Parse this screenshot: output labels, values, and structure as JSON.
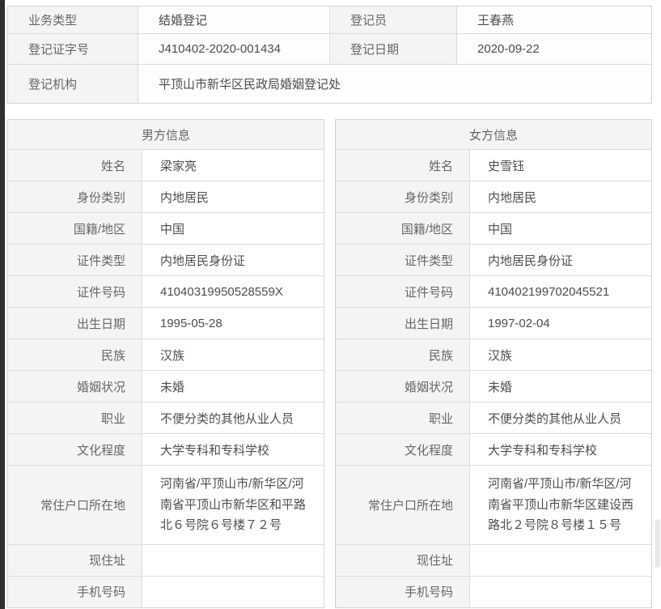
{
  "colors": {
    "label_cell_bg": "#f4f4f4",
    "value_cell_bg": "#ffffff",
    "border": "#d4d4d4",
    "label_text": "#666666",
    "value_text": "#4d4d4d",
    "window_edge": "#2f2f2f"
  },
  "registration": {
    "business_type_label": "业务类型",
    "business_type_value": "结婚登记",
    "registrar_label": "登记员",
    "registrar_value": "王春燕",
    "cert_no_label": "登记证字号",
    "cert_no_value": "J410402-2020-001434",
    "date_label": "登记日期",
    "date_value": "2020-09-22",
    "agency_label": "登记机构",
    "agency_value": "平顶山市新华区民政局婚姻登记处"
  },
  "male": {
    "title": "男方信息",
    "fields": {
      "name": {
        "label": "姓名",
        "value": "梁家亮"
      },
      "identity": {
        "label": "身份类别",
        "value": "内地居民"
      },
      "nationality": {
        "label": "国籍/地区",
        "value": "中国"
      },
      "certType": {
        "label": "证件类型",
        "value": "内地居民身份证"
      },
      "certNo": {
        "label": "证件号码",
        "value": "41040319950528559X"
      },
      "birthDate": {
        "label": "出生日期",
        "value": "1995-05-28"
      },
      "ethnicity": {
        "label": "民族",
        "value": "汉族"
      },
      "marital": {
        "label": "婚姻状况",
        "value": "未婚"
      },
      "occupation": {
        "label": "职业",
        "value": "不便分类的其他从业人员"
      },
      "education": {
        "label": "文化程度",
        "value": "大学专科和专科学校"
      },
      "household": {
        "label": "常住户口所在地",
        "value": "河南省/平顶山市/新华区/河南省平顶山市新华区和平路北６号院６号楼７２号"
      },
      "currentAddress": {
        "label": "现住址",
        "value": ""
      },
      "mobile": {
        "label": "手机号码",
        "value": ""
      }
    }
  },
  "female": {
    "title": "女方信息",
    "fields": {
      "name": {
        "label": "姓名",
        "value": "史雪钰"
      },
      "identity": {
        "label": "身份类别",
        "value": "内地居民"
      },
      "nationality": {
        "label": "国籍/地区",
        "value": "中国"
      },
      "certType": {
        "label": "证件类型",
        "value": "内地居民身份证"
      },
      "certNo": {
        "label": "证件号码",
        "value": "410402199702045521"
      },
      "birthDate": {
        "label": "出生日期",
        "value": "1997-02-04"
      },
      "ethnicity": {
        "label": "民族",
        "value": "汉族"
      },
      "marital": {
        "label": "婚姻状况",
        "value": "未婚"
      },
      "occupation": {
        "label": "职业",
        "value": "不便分类的其他从业人员"
      },
      "education": {
        "label": "文化程度",
        "value": "大学专科和专科学校"
      },
      "household": {
        "label": "常住户口所在地",
        "value": "河南省/平顶山市/新华区/河南省平顶山市新华区建设西路北２号院８号楼１５号"
      },
      "currentAddress": {
        "label": "现住址",
        "value": ""
      },
      "mobile": {
        "label": "手机号码",
        "value": ""
      }
    }
  }
}
